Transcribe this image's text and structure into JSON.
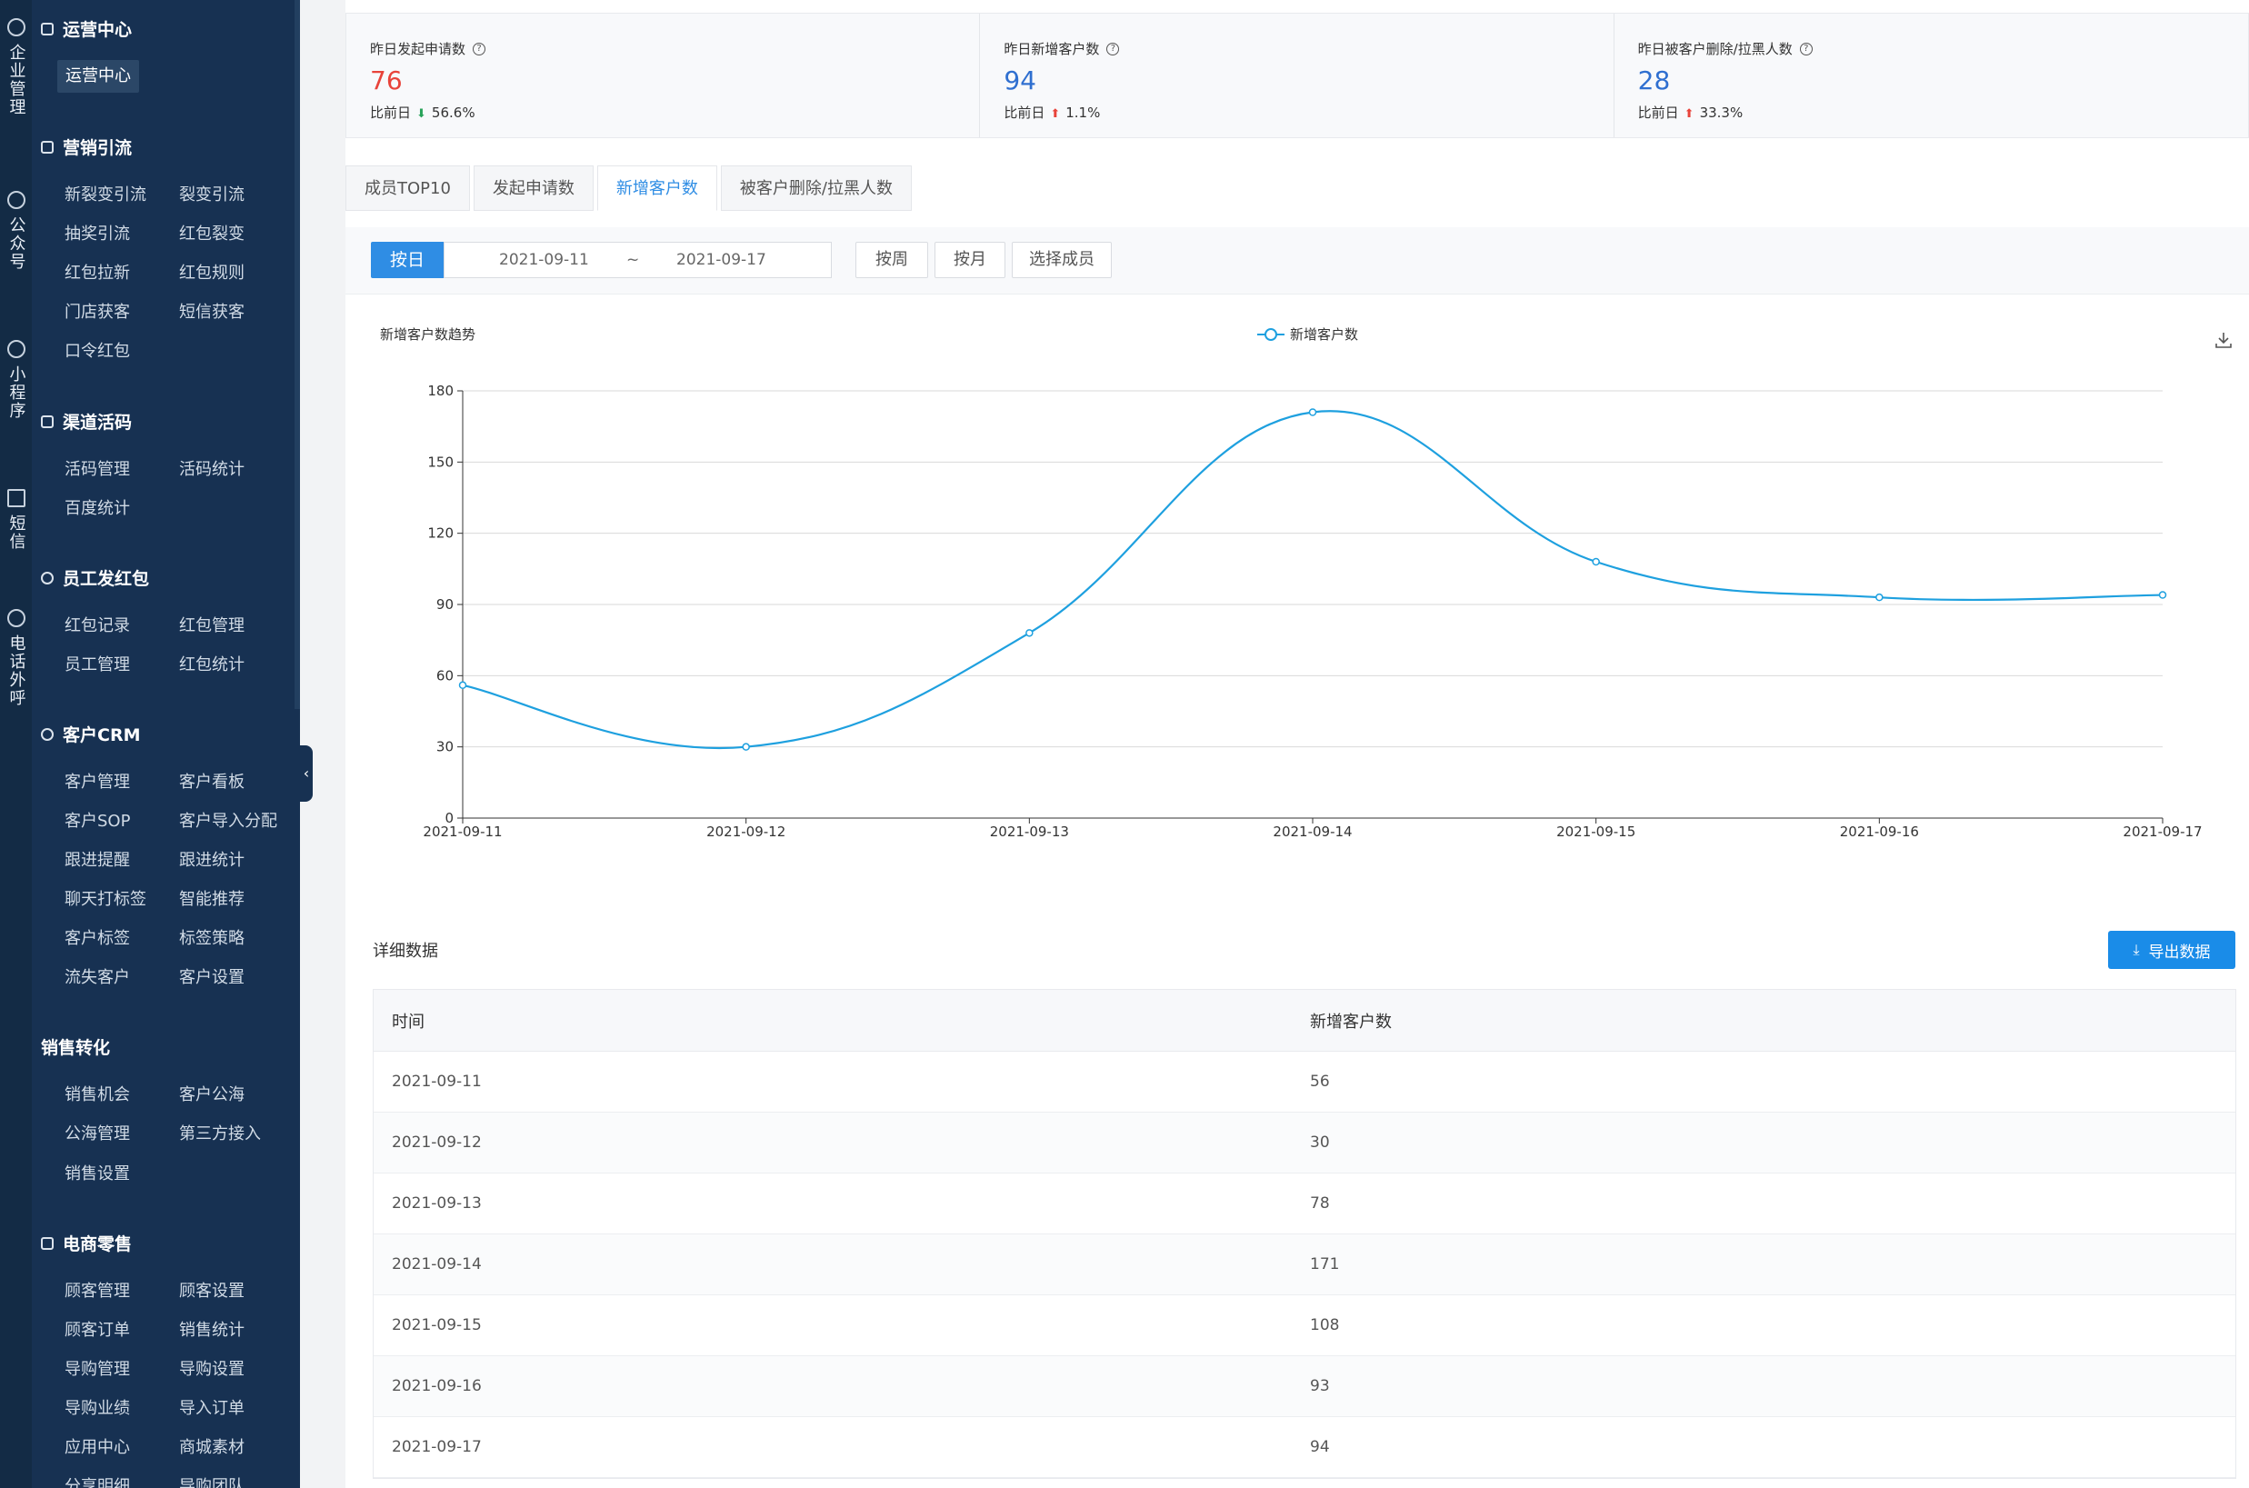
{
  "rail": [
    {
      "icon": "chat-icon",
      "label": "企业管理"
    },
    {
      "icon": "wechat-icon",
      "label": "公众号"
    },
    {
      "icon": "compass-icon",
      "label": "小程序"
    },
    {
      "icon": "mail-icon",
      "label": "短信"
    },
    {
      "icon": "phone-icon",
      "label": "电话外呼"
    }
  ],
  "sidebar": {
    "ops_title": "运营中心",
    "ops_active": "运营中心",
    "groups": [
      {
        "title": "营销引流",
        "items": [
          "新裂变引流",
          "裂变引流",
          "抽奖引流",
          "红包裂变",
          "红包拉新",
          "红包规则",
          "门店获客",
          "短信获客",
          "口令红包"
        ]
      },
      {
        "title": "渠道活码",
        "items": [
          "活码管理",
          "活码统计",
          "百度统计"
        ]
      },
      {
        "title": "员工发红包",
        "items": [
          "红包记录",
          "红包管理",
          "员工管理",
          "红包统计"
        ]
      },
      {
        "title": "客户CRM",
        "items": [
          "客户管理",
          "客户看板",
          "客户SOP",
          "客户导入分配",
          "跟进提醒",
          "跟进统计",
          "聊天打标签",
          "智能推荐",
          "客户标签",
          "标签策略",
          "流失客户",
          "客户设置"
        ]
      },
      {
        "title": "销售转化",
        "items": [
          "销售机会",
          "客户公海",
          "公海管理",
          "第三方接入",
          "销售设置"
        ]
      },
      {
        "title": "电商零售",
        "items": [
          "顾客管理",
          "顾客设置",
          "顾客订单",
          "销售统计",
          "导购管理",
          "导购设置",
          "导购业绩",
          "导入订单",
          "应用中心",
          "商城素材",
          "分享明细",
          "导购团队"
        ]
      }
    ]
  },
  "stats": [
    {
      "label": "昨日发起申请数",
      "value": "76",
      "cmp_label": "比前日",
      "cmp_dir": "down",
      "cmp_value": "56.6%",
      "value_color": "#e8433a"
    },
    {
      "label": "昨日新增客户数",
      "value": "94",
      "cmp_label": "比前日",
      "cmp_dir": "up",
      "cmp_value": "1.1%",
      "value_color": "#2f6fd0"
    },
    {
      "label": "昨日被客户删除/拉黑人数",
      "value": "28",
      "cmp_label": "比前日",
      "cmp_dir": "up",
      "cmp_value": "33.3%",
      "value_color": "#2f6fd0"
    }
  ],
  "tabs": [
    "成员TOP10",
    "发起申请数",
    "新增客户数",
    "被客户删除/拉黑人数"
  ],
  "filter": {
    "by_day": "按日",
    "start": "2021-09-11",
    "sep": "~",
    "end": "2021-09-17",
    "by_week": "按周",
    "by_month": "按月",
    "select_member": "选择成员"
  },
  "chart_data": {
    "type": "line",
    "title": "新增客户数趋势",
    "x": [
      "2021-09-11",
      "2021-09-12",
      "2021-09-13",
      "2021-09-14",
      "2021-09-15",
      "2021-09-16",
      "2021-09-17"
    ],
    "series": [
      {
        "name": "新增客户数",
        "values": [
          56,
          30,
          78,
          171,
          108,
          93,
          94
        ]
      }
    ],
    "ylim": [
      0,
      180
    ],
    "yticks": [
      0,
      30,
      60,
      90,
      120,
      150,
      180
    ],
    "grid": true,
    "legend": "top-center",
    "color": "#1ea0df"
  },
  "detail": {
    "title": "详细数据",
    "export": "导出数据",
    "columns": [
      "时间",
      "新增客户数"
    ],
    "rows": [
      [
        "2021-09-11",
        "56"
      ],
      [
        "2021-09-12",
        "30"
      ],
      [
        "2021-09-13",
        "78"
      ],
      [
        "2021-09-14",
        "171"
      ],
      [
        "2021-09-15",
        "108"
      ],
      [
        "2021-09-16",
        "93"
      ],
      [
        "2021-09-17",
        "94"
      ]
    ]
  }
}
